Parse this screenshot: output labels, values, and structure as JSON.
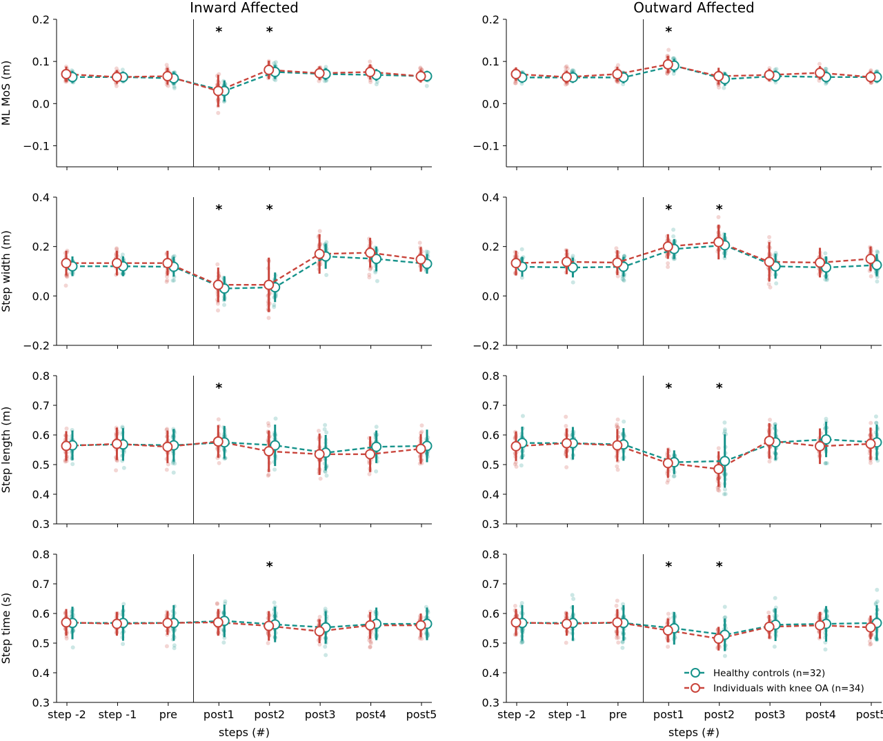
{
  "colors": {
    "control": "#15928a",
    "oa": "#c9443b"
  },
  "legend": {
    "control": "Healthy controls (n=32)",
    "oa": "Individuals with knee OA (n=34)"
  },
  "chart_data": {
    "type": "line",
    "categories": [
      "step -2",
      "step -1",
      "pre",
      "post1",
      "post2",
      "post3",
      "post4",
      "post5"
    ],
    "xlabel": "steps (#)",
    "columns": [
      {
        "title": "Inward Affected"
      },
      {
        "title": "Outward Affected"
      }
    ],
    "rows": [
      {
        "ylabel": "ML MoS (m)",
        "ylim": [
          -0.15,
          0.2
        ],
        "yticks": [
          0.2,
          0.1,
          0.0,
          -0.1
        ],
        "yticklabels": [
          "0.2",
          "0.1",
          "0.0",
          "−0.1"
        ],
        "panels": [
          {
            "significant": [
              "post1",
              "post2"
            ],
            "series": [
              {
                "name": "Healthy controls (n=32)",
                "values": [
                  0.063,
                  0.063,
                  0.06,
                  0.03,
                  0.075,
                  0.07,
                  0.068,
                  0.065
                ],
                "sd": [
                  0.014,
                  0.013,
                  0.015,
                  0.025,
                  0.016,
                  0.014,
                  0.014,
                  0.013
                ]
              },
              {
                "name": "Individuals with knee OA (n=34)",
                "values": [
                  0.07,
                  0.063,
                  0.065,
                  0.03,
                  0.08,
                  0.072,
                  0.075,
                  0.065
                ],
                "sd": [
                  0.018,
                  0.016,
                  0.02,
                  0.038,
                  0.022,
                  0.016,
                  0.018,
                  0.015
                ]
              }
            ]
          },
          {
            "significant": [
              "post1"
            ],
            "series": [
              {
                "name": "Healthy controls (n=32)",
                "values": [
                  0.062,
                  0.062,
                  0.062,
                  0.09,
                  0.058,
                  0.065,
                  0.063,
                  0.063
                ],
                "sd": [
                  0.013,
                  0.013,
                  0.014,
                  0.016,
                  0.016,
                  0.013,
                  0.013,
                  0.013
                ]
              },
              {
                "name": "Individuals with knee OA (n=34)",
                "values": [
                  0.07,
                  0.063,
                  0.07,
                  0.093,
                  0.065,
                  0.068,
                  0.073,
                  0.063
                ],
                "sd": [
                  0.016,
                  0.015,
                  0.017,
                  0.02,
                  0.02,
                  0.015,
                  0.016,
                  0.014
                ]
              }
            ]
          }
        ]
      },
      {
        "ylabel": "Step width (m)",
        "ylim": [
          -0.2,
          0.4
        ],
        "yticks": [
          0.4,
          0.2,
          0.0,
          -0.2
        ],
        "yticklabels": [
          "0.4",
          "0.2",
          "0.0",
          "−0.2"
        ],
        "panels": [
          {
            "significant": [
              "post1",
              "post2"
            ],
            "series": [
              {
                "name": "Healthy controls (n=32)",
                "values": [
                  0.12,
                  0.12,
                  0.118,
                  0.03,
                  0.035,
                  0.16,
                  0.15,
                  0.13
                ],
                "sd": [
                  0.04,
                  0.04,
                  0.04,
                  0.05,
                  0.06,
                  0.05,
                  0.05,
                  0.04
                ]
              },
              {
                "name": "Individuals with knee OA (n=34)",
                "values": [
                  0.133,
                  0.133,
                  0.133,
                  0.045,
                  0.045,
                  0.17,
                  0.175,
                  0.148
                ],
                "sd": [
                  0.05,
                  0.05,
                  0.05,
                  0.07,
                  0.11,
                  0.08,
                  0.06,
                  0.05
                ]
              }
            ]
          },
          {
            "significant": [
              "post1",
              "post2"
            ],
            "series": [
              {
                "name": "Healthy controls (n=32)",
                "values": [
                  0.118,
                  0.115,
                  0.118,
                  0.19,
                  0.205,
                  0.12,
                  0.115,
                  0.125
                ],
                "sd": [
                  0.04,
                  0.04,
                  0.04,
                  0.04,
                  0.05,
                  0.05,
                  0.045,
                  0.045
                ]
              },
              {
                "name": "Individuals with knee OA (n=34)",
                "values": [
                  0.133,
                  0.138,
                  0.135,
                  0.2,
                  0.218,
                  0.138,
                  0.135,
                  0.15
                ],
                "sd": [
                  0.05,
                  0.05,
                  0.05,
                  0.05,
                  0.07,
                  0.08,
                  0.06,
                  0.05
                ]
              }
            ]
          }
        ]
      },
      {
        "ylabel": "Step length (m)",
        "ylim": [
          0.3,
          0.8
        ],
        "yticks": [
          0.8,
          0.7,
          0.6,
          0.5,
          0.4,
          0.3
        ],
        "yticklabels": [
          "0.8",
          "0.7",
          "0.6",
          "0.5",
          "0.4",
          "0.3"
        ],
        "panels": [
          {
            "significant": [
              "post1"
            ],
            "series": [
              {
                "name": "Healthy controls (n=32)",
                "values": [
                  0.565,
                  0.568,
                  0.565,
                  0.575,
                  0.565,
                  0.54,
                  0.56,
                  0.563
                ],
                "sd": [
                  0.05,
                  0.055,
                  0.055,
                  0.055,
                  0.07,
                  0.06,
                  0.055,
                  0.055
                ]
              },
              {
                "name": "Individuals with knee OA (n=34)",
                "values": [
                  0.563,
                  0.57,
                  0.56,
                  0.578,
                  0.545,
                  0.535,
                  0.535,
                  0.553
                ],
                "sd": [
                  0.05,
                  0.055,
                  0.055,
                  0.055,
                  0.07,
                  0.07,
                  0.06,
                  0.05
                ]
              }
            ]
          },
          {
            "significant": [
              "post1",
              "post2"
            ],
            "series": [
              {
                "name": "Healthy controls (n=32)",
                "values": [
                  0.573,
                  0.572,
                  0.568,
                  0.508,
                  0.512,
                  0.575,
                  0.585,
                  0.575
                ],
                "sd": [
                  0.055,
                  0.055,
                  0.055,
                  0.04,
                  0.09,
                  0.06,
                  0.06,
                  0.06
                ]
              },
              {
                "name": "Individuals with knee OA (n=34)",
                "values": [
                  0.562,
                  0.572,
                  0.565,
                  0.505,
                  0.485,
                  0.58,
                  0.562,
                  0.57
                ],
                "sd": [
                  0.05,
                  0.05,
                  0.055,
                  0.05,
                  0.06,
                  0.06,
                  0.06,
                  0.055
                ]
              }
            ]
          }
        ]
      },
      {
        "ylabel": "Step time (s)",
        "ylim": [
          0.3,
          0.8
        ],
        "yticks": [
          0.8,
          0.7,
          0.6,
          0.5,
          0.4,
          0.3
        ],
        "yticklabels": [
          "0.8",
          "0.7",
          "0.6",
          "0.5",
          "0.4",
          "0.3"
        ],
        "panels": [
          {
            "significant": [
              "post2"
            ],
            "series": [
              {
                "name": "Healthy controls (n=32)",
                "values": [
                  0.568,
                  0.568,
                  0.568,
                  0.575,
                  0.563,
                  0.553,
                  0.565,
                  0.565
                ],
                "sd": [
                  0.055,
                  0.06,
                  0.06,
                  0.055,
                  0.06,
                  0.055,
                  0.055,
                  0.055
                ]
              },
              {
                "name": "Individuals with knee OA (n=34)",
                "values": [
                  0.57,
                  0.565,
                  0.568,
                  0.57,
                  0.558,
                  0.54,
                  0.56,
                  0.56
                ],
                "sd": [
                  0.045,
                  0.04,
                  0.04,
                  0.045,
                  0.05,
                  0.04,
                  0.045,
                  0.04
                ]
              }
            ]
          },
          {
            "significant": [
              "post1",
              "post2"
            ],
            "series": [
              {
                "name": "Healthy controls (n=32)",
                "values": [
                  0.568,
                  0.568,
                  0.568,
                  0.55,
                  0.528,
                  0.562,
                  0.565,
                  0.568
                ],
                "sd": [
                  0.06,
                  0.06,
                  0.06,
                  0.055,
                  0.055,
                  0.055,
                  0.06,
                  0.06
                ]
              },
              {
                "name": "Individuals with knee OA (n=34)",
                "values": [
                  0.57,
                  0.565,
                  0.57,
                  0.543,
                  0.515,
                  0.555,
                  0.56,
                  0.553
                ],
                "sd": [
                  0.045,
                  0.04,
                  0.045,
                  0.04,
                  0.04,
                  0.04,
                  0.045,
                  0.04
                ]
              }
            ]
          }
        ]
      }
    ]
  }
}
